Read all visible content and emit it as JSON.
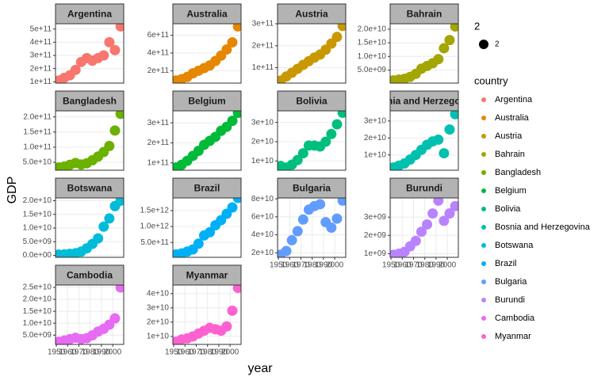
{
  "chart_data": [
    {
      "type": "scatter",
      "title": "Argentina",
      "color": "#F8766D",
      "x": [
        1952,
        1957,
        1962,
        1967,
        1972,
        1977,
        1982,
        1987,
        1992,
        1997,
        2002,
        2007
      ],
      "values": [
        110000000000.0,
        130000000000.0,
        150000000000.0,
        190000000000.0,
        250000000000.0,
        280000000000.0,
        260000000000.0,
        280000000000.0,
        300000000000.0,
        400000000000.0,
        340000000000.0,
        520000000000.0
      ],
      "xlim": [
        1949.25,
        2009.75
      ],
      "ylim": [
        90000000000.0,
        540000000000.0
      ],
      "yticks": [
        {
          "value": 100000000000.0,
          "label": "1e+11"
        },
        {
          "value": 200000000000.0,
          "label": "2e+11"
        },
        {
          "value": 300000000000.0,
          "label": "3e+11"
        },
        {
          "value": 400000000000.0,
          "label": "4e+11"
        },
        {
          "value": 500000000000.0,
          "label": "5e+11"
        }
      ]
    },
    {
      "type": "scatter",
      "title": "Australia",
      "color": "#E58700",
      "x": [
        1952,
        1957,
        1962,
        1967,
        1972,
        1977,
        1982,
        1987,
        1992,
        1997,
        2002,
        2007
      ],
      "values": [
        90000000000.0,
        105000000000.0,
        130000000000.0,
        170000000000.0,
        200000000000.0,
        230000000000.0,
        260000000000.0,
        310000000000.0,
        370000000000.0,
        440000000000.0,
        520000000000.0,
        700000000000.0
      ],
      "xlim": [
        1949.25,
        2009.75
      ],
      "ylim": [
        60000000000.0,
        730000000000.0
      ],
      "yticks": [
        {
          "value": 200000000000.0,
          "label": "2e+11"
        },
        {
          "value": 400000000000.0,
          "label": "4e+11"
        },
        {
          "value": 600000000000.0,
          "label": "6e+11"
        }
      ]
    },
    {
      "type": "scatter",
      "title": "Austria",
      "color": "#C99800",
      "x": [
        1952,
        1957,
        1962,
        1967,
        1972,
        1977,
        1982,
        1987,
        1992,
        1997,
        2002,
        2007
      ],
      "values": [
        42000000000.0,
        60000000000.0,
        77000000000.0,
        95000000000.0,
        113000000000.0,
        130000000000.0,
        146000000000.0,
        160000000000.0,
        182000000000.0,
        210000000000.0,
        240000000000.0,
        290000000000.0
      ],
      "xlim": [
        1949.25,
        2009.75
      ],
      "ylim": [
        30000000000.0,
        300000000000.0
      ],
      "yticks": [
        {
          "value": 100000000000.0,
          "label": "1e+11"
        },
        {
          "value": 200000000000.0,
          "label": "2e+11"
        },
        {
          "value": 300000000000.0,
          "label": "3e+11"
        }
      ]
    },
    {
      "type": "scatter",
      "title": "Bahrain",
      "color": "#A3A500",
      "x": [
        1952,
        1957,
        1962,
        1967,
        1972,
        1977,
        1982,
        1987,
        1992,
        1997,
        2002,
        2007
      ],
      "values": [
        1200000000.0,
        1500000000.0,
        1800000000.0,
        2500000000.0,
        3600000000.0,
        5500000000.0,
        6500000000.0,
        7500000000.0,
        9000000000.0,
        13000000000.0,
        16000000000.0,
        21000000000.0
      ],
      "xlim": [
        1949.25,
        2009.75
      ],
      "ylim": [
        200000000.0,
        22000000000.0
      ],
      "yticks": [
        {
          "value": 5000000000.0,
          "label": "5.0e+09"
        },
        {
          "value": 10000000000.0,
          "label": "1.0e+10"
        },
        {
          "value": 15000000000.0,
          "label": "1.5e+10"
        },
        {
          "value": 20000000000.0,
          "label": "2.0e+10"
        }
      ]
    },
    {
      "type": "scatter",
      "title": "Bangladesh",
      "color": "#6BB100",
      "x": [
        1952,
        1957,
        1962,
        1967,
        1972,
        1977,
        1982,
        1987,
        1992,
        1997,
        2002,
        2007
      ],
      "values": [
        33000000000.0,
        36000000000.0,
        42000000000.0,
        48000000000.0,
        43000000000.0,
        47000000000.0,
        57000000000.0,
        69000000000.0,
        84000000000.0,
        104000000000.0,
        155000000000.0,
        210000000000.0
      ],
      "xlim": [
        1949.25,
        2009.75
      ],
      "ylim": [
        24000000000.0,
        220000000000.0
      ],
      "yticks": [
        {
          "value": 50000000000.0,
          "label": "5.0e+10"
        },
        {
          "value": 100000000000.0,
          "label": "1.0e+11"
        },
        {
          "value": 150000000000.0,
          "label": "1.5e+11"
        },
        {
          "value": 200000000000.0,
          "label": "2.0e+11"
        }
      ]
    },
    {
      "type": "scatter",
      "title": "Belgium",
      "color": "#00BA38",
      "x": [
        1952,
        1957,
        1962,
        1967,
        1972,
        1977,
        1982,
        1987,
        1992,
        1997,
        2002,
        2007
      ],
      "values": [
        77000000000.0,
        90000000000.0,
        110000000000.0,
        135000000000.0,
        160000000000.0,
        190000000000.0,
        210000000000.0,
        230000000000.0,
        260000000000.0,
        280000000000.0,
        310000000000.0,
        350000000000.0
      ],
      "xlim": [
        1949.25,
        2009.75
      ],
      "ylim": [
        63000000000.0,
        360000000000.0
      ],
      "yticks": [
        {
          "value": 100000000000.0,
          "label": "1e+11"
        },
        {
          "value": 200000000000.0,
          "label": "2e+11"
        },
        {
          "value": 300000000000.0,
          "label": "3e+11"
        }
      ]
    },
    {
      "type": "scatter",
      "title": "Bolivia",
      "color": "#00BF7D",
      "x": [
        1952,
        1957,
        1962,
        1967,
        1972,
        1977,
        1982,
        1987,
        1992,
        1997,
        2002,
        2007
      ],
      "values": [
        7400000000.0,
        6600000000.0,
        8100000000.0,
        10500000000.0,
        14000000000.0,
        18000000000.0,
        18000000000.0,
        17500000000.0,
        20000000000.0,
        24000000000.0,
        29000000000.0,
        35000000000.0
      ],
      "xlim": [
        1949.25,
        2009.75
      ],
      "ylim": [
        5200000000.0,
        36000000000.0
      ],
      "yticks": [
        {
          "value": 10000000000.0,
          "label": "1e+10"
        },
        {
          "value": 20000000000.0,
          "label": "2e+10"
        },
        {
          "value": 30000000000.0,
          "label": "3e+10"
        }
      ]
    },
    {
      "type": "scatter",
      "title": "Bosnia and Herzegovina",
      "color": "#00C0AF",
      "x": [
        1952,
        1957,
        1962,
        1967,
        1972,
        1977,
        1982,
        1987,
        1992,
        1997,
        2002,
        2007
      ],
      "values": [
        2600000000.0,
        3700000000.0,
        5000000000.0,
        7300000000.0,
        10000000000.0,
        13000000000.0,
        16000000000.0,
        18000000000.0,
        19000000000.0,
        11000000000.0,
        25000000000.0,
        34000000000.0
      ],
      "xlim": [
        1949.25,
        2009.75
      ],
      "ylim": [
        1000000000.0,
        36000000000.0
      ],
      "yticks": [
        {
          "value": 10000000000.0,
          "label": "1e+10"
        },
        {
          "value": 20000000000.0,
          "label": "2e+10"
        },
        {
          "value": 30000000000.0,
          "label": "3e+10"
        }
      ]
    },
    {
      "type": "scatter",
      "title": "Botswana",
      "color": "#00BCD8",
      "x": [
        1952,
        1957,
        1962,
        1967,
        1972,
        1977,
        1982,
        1987,
        1992,
        1997,
        2002,
        2007
      ],
      "values": [
        300000000.0,
        400000000.0,
        550000000.0,
        800000000.0,
        1400000000.0,
        2600000000.0,
        4200000000.0,
        6200000000.0,
        10500000000.0,
        13500000000.0,
        18000000000.0,
        20000000000.0
      ],
      "xlim": [
        1949.25,
        2009.75
      ],
      "ylim": [
        -700000000.0,
        21000000000.0
      ],
      "yticks": [
        {
          "value": 0,
          "label": "0.0e+00"
        },
        {
          "value": 5000000000.0,
          "label": "5.0e+09"
        },
        {
          "value": 10000000000.0,
          "label": "1.0e+10"
        },
        {
          "value": 15000000000.0,
          "label": "1.5e+10"
        },
        {
          "value": 20000000000.0,
          "label": "2.0e+10"
        }
      ]
    },
    {
      "type": "scatter",
      "title": "Brazil",
      "color": "#00B0F6",
      "x": [
        1952,
        1957,
        1962,
        1967,
        1972,
        1977,
        1982,
        1987,
        1992,
        1997,
        2002,
        2007
      ],
      "values": [
        120000000000.0,
        150000000000.0,
        210000000000.0,
        280000000000.0,
        460000000000.0,
        720000000000.0,
        820000000000.0,
        1040000000000.0,
        1200000000000.0,
        1400000000000.0,
        1600000000000.0,
        1900000000000.0
      ],
      "xlim": [
        1949.25,
        2009.75
      ],
      "ylim": [
        30000000000.0,
        1900000000000.0
      ],
      "yticks": [
        {
          "value": 500000000000.0,
          "label": "5.0e+11"
        },
        {
          "value": 1000000000000.0,
          "label": "1.0e+12"
        },
        {
          "value": 1500000000000.0,
          "label": "1.5e+12"
        }
      ]
    },
    {
      "type": "scatter",
      "title": "Bulgaria",
      "color": "#619CFF",
      "x": [
        1952,
        1957,
        1962,
        1967,
        1972,
        1977,
        1982,
        1987,
        1992,
        1997,
        2002,
        2007
      ],
      "values": [
        18000000000.0,
        22000000000.0,
        34000000000.0,
        44000000000.0,
        57000000000.0,
        68000000000.0,
        72000000000.0,
        74000000000.0,
        54000000000.0,
        48000000000.0,
        58000000000.0,
        78000000000.0
      ],
      "xlim": [
        1949.25,
        2009.75
      ],
      "ylim": [
        15000000000.0,
        81000000000.0
      ],
      "yticks": [
        {
          "value": 20000000000.0,
          "label": "2e+10"
        },
        {
          "value": 40000000000.0,
          "label": "4e+10"
        },
        {
          "value": 60000000000.0,
          "label": "6e+10"
        },
        {
          "value": 80000000000.0,
          "label": "8e+10"
        }
      ],
      "xticks": [
        1950,
        1960,
        1970,
        1980,
        1990,
        2000
      ]
    },
    {
      "type": "scatter",
      "title": "Burundi",
      "color": "#B983FF",
      "x": [
        1952,
        1957,
        1962,
        1967,
        1972,
        1977,
        1982,
        1987,
        1992,
        1997,
        2002,
        2007
      ],
      "values": [
        940000000.0,
        1000000000.0,
        1100000000.0,
        1400000000.0,
        1700000000.0,
        2200000000.0,
        2600000000.0,
        3200000000.0,
        3900000000.0,
        2800000000.0,
        3200000000.0,
        3600000000.0
      ],
      "xlim": [
        1949.25,
        2009.75
      ],
      "ylim": [
        800000000.0,
        4050000000.0
      ],
      "yticks": [
        {
          "value": 1000000000.0,
          "label": "1e+09"
        },
        {
          "value": 2000000000.0,
          "label": "2e+09"
        },
        {
          "value": 3000000000.0,
          "label": "3e+09"
        }
      ],
      "xticks": [
        1950,
        1960,
        1970,
        1980,
        1990,
        2000
      ]
    },
    {
      "type": "scatter",
      "title": "Cambodia",
      "color": "#E76BF3",
      "x": [
        1952,
        1957,
        1962,
        1967,
        1972,
        1977,
        1982,
        1987,
        1992,
        1997,
        2002,
        2007
      ],
      "values": [
        2200000000.0,
        2700000000.0,
        3300000000.0,
        3900000000.0,
        3300000000.0,
        3700000000.0,
        4900000000.0,
        6500000000.0,
        7600000000.0,
        9400000000.0,
        12000000000.0,
        25000000000.0
      ],
      "xlim": [
        1949.25,
        2009.75
      ],
      "ylim": [
        1100000000.0,
        26000000000.0
      ],
      "yticks": [
        {
          "value": 5000000000.0,
          "label": "5.0e+09"
        },
        {
          "value": 10000000000.0,
          "label": "1.0e+10"
        },
        {
          "value": 15000000000.0,
          "label": "1.5e+10"
        },
        {
          "value": 20000000000.0,
          "label": "2.0e+10"
        },
        {
          "value": 25000000000.0,
          "label": "2.5e+10"
        }
      ],
      "xticks": [
        1950,
        1960,
        1970,
        1980,
        1990,
        2000
      ]
    },
    {
      "type": "scatter",
      "title": "Myanmar",
      "color": "#FD61D1",
      "x": [
        1952,
        1957,
        1962,
        1967,
        1972,
        1977,
        1982,
        1987,
        1992,
        1997,
        2002,
        2007
      ],
      "values": [
        6300000000.0,
        7900000000.0,
        8600000000.0,
        10000000000.0,
        12000000000.0,
        14000000000.0,
        16000000000.0,
        15000000000.0,
        14000000000.0,
        17000000000.0,
        28000000000.0,
        44000000000.0
      ],
      "xlim": [
        1949.25,
        2009.75
      ],
      "ylim": [
        4400000000.0,
        46000000000.0
      ],
      "yticks": [
        {
          "value": 10000000000.0,
          "label": "1e+10"
        },
        {
          "value": 20000000000.0,
          "label": "2e+10"
        },
        {
          "value": 30000000000.0,
          "label": "3e+10"
        },
        {
          "value": 40000000000.0,
          "label": "4e+10"
        }
      ],
      "xticks": [
        1950,
        1960,
        1970,
        1980,
        1990,
        2000
      ]
    }
  ],
  "axes": {
    "x_label": "year",
    "y_label": "GDP"
  },
  "legend": {
    "title": "country",
    "size_title": "2",
    "size_label": "2"
  }
}
